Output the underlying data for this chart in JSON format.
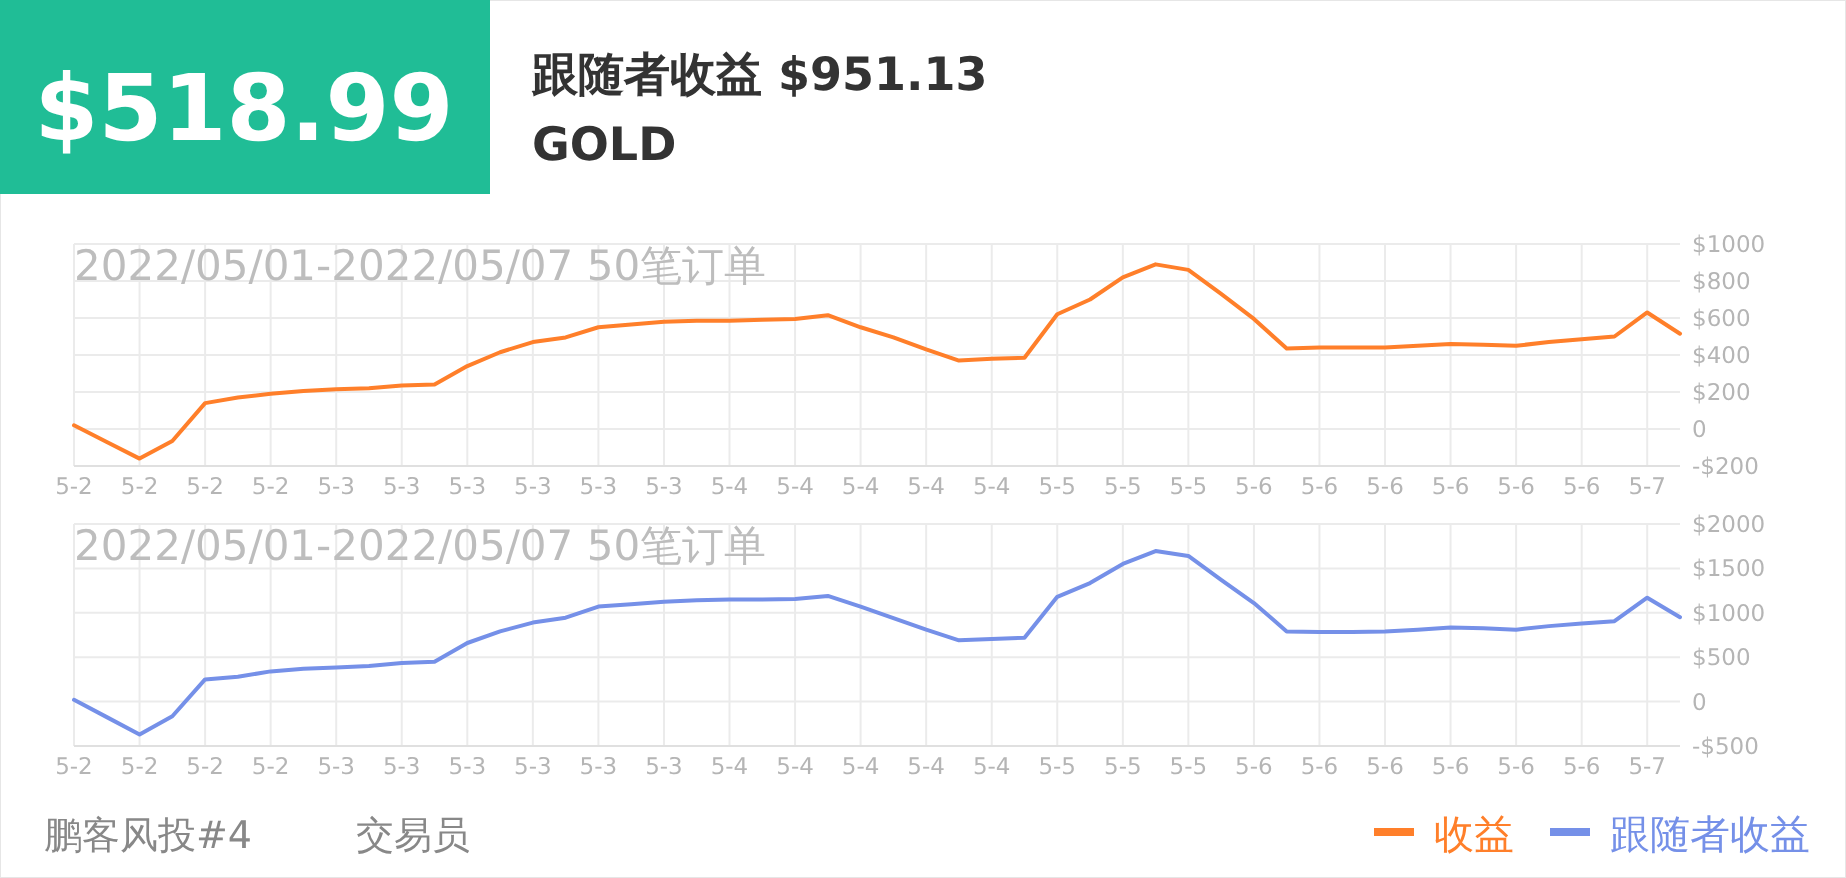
{
  "chart_data": [
    {
      "type": "other",
      "title": "$518.99",
      "subtitle": "跟随者收益 $951.13",
      "annotations": [
        "GOLD",
        "鹏客风投#4",
        "交易员"
      ]
    },
    {
      "type": "line",
      "annotations": [
        "2022/05/01-2022/05/07 50笔订单"
      ],
      "categories": [
        "5-2",
        null,
        "5-2",
        null,
        "5-2",
        null,
        "5-2",
        null,
        "5-3",
        null,
        "5-3",
        null,
        "5-3",
        null,
        "5-3",
        null,
        "5-3",
        null,
        "5-3",
        null,
        "5-4",
        null,
        "5-4",
        null,
        "5-4",
        null,
        "5-4",
        null,
        "5-4",
        null,
        "5-5",
        null,
        "5-5",
        null,
        "5-5",
        null,
        "5-6",
        null,
        "5-6",
        null,
        "5-6",
        null,
        "5-6",
        null,
        "5-6",
        null,
        "5-6",
        null,
        "5-7",
        null
      ],
      "series": [
        {
          "name": "收益",
          "color": "#ff7f2a",
          "values": [
            20,
            -70,
            -160,
            -65,
            140,
            170,
            190,
            205,
            215,
            220,
            235,
            240,
            340,
            415,
            470,
            495,
            550,
            565,
            580,
            585,
            585,
            590,
            595,
            615,
            550,
            495,
            430,
            370,
            380,
            385,
            620,
            700,
            820,
            890,
            860,
            730,
            595,
            435,
            440,
            440,
            440,
            450,
            460,
            455,
            450,
            470,
            485,
            500,
            630,
            515
          ]
        }
      ],
      "ylim": [
        -200,
        1000
      ],
      "yticks": [
        {
          "value": -200,
          "label": "-$200"
        },
        0,
        {
          "value": 200,
          "label": "$200"
        },
        {
          "value": 400,
          "label": "$400"
        },
        {
          "value": 600,
          "label": "$600"
        },
        {
          "value": 800,
          "label": "$800"
        },
        {
          "value": 1000,
          "label": "$1000"
        }
      ],
      "grid": true,
      "legend": "bottom right"
    },
    {
      "type": "line",
      "annotations": [
        "2022/05/01-2022/05/07 50笔订单"
      ],
      "categories": [
        "5-2",
        null,
        "5-2",
        null,
        "5-2",
        null,
        "5-2",
        null,
        "5-3",
        null,
        "5-3",
        null,
        "5-3",
        null,
        "5-3",
        null,
        "5-3",
        null,
        "5-3",
        null,
        "5-4",
        null,
        "5-4",
        null,
        "5-4",
        null,
        "5-4",
        null,
        "5-4",
        null,
        "5-5",
        null,
        "5-5",
        null,
        "5-5",
        null,
        "5-6",
        null,
        "5-6",
        null,
        "5-6",
        null,
        "5-6",
        null,
        "5-6",
        null,
        "5-6",
        null,
        "5-7",
        null
      ],
      "series": [
        {
          "name": "跟随者收益",
          "color": "#7590e8",
          "values": [
            20,
            -175,
            -370,
            -165,
            250,
            280,
            340,
            370,
            385,
            400,
            435,
            450,
            660,
            790,
            890,
            945,
            1070,
            1095,
            1125,
            1140,
            1150,
            1150,
            1155,
            1190,
            1070,
            940,
            810,
            690,
            705,
            720,
            1180,
            1335,
            1550,
            1695,
            1640,
            1370,
            1110,
            790,
            785,
            785,
            790,
            810,
            835,
            825,
            810,
            850,
            880,
            905,
            1170,
            950
          ]
        }
      ],
      "ylim": [
        -500,
        2000
      ],
      "yticks": [
        {
          "value": -500,
          "label": "-$500"
        },
        0,
        {
          "value": 500,
          "label": "$500"
        },
        {
          "value": 1000,
          "label": "$1000"
        },
        {
          "value": 1500,
          "label": "$1500"
        },
        {
          "value": 2000,
          "label": "$2000"
        }
      ],
      "grid": true,
      "legend": "bottom right"
    }
  ]
}
